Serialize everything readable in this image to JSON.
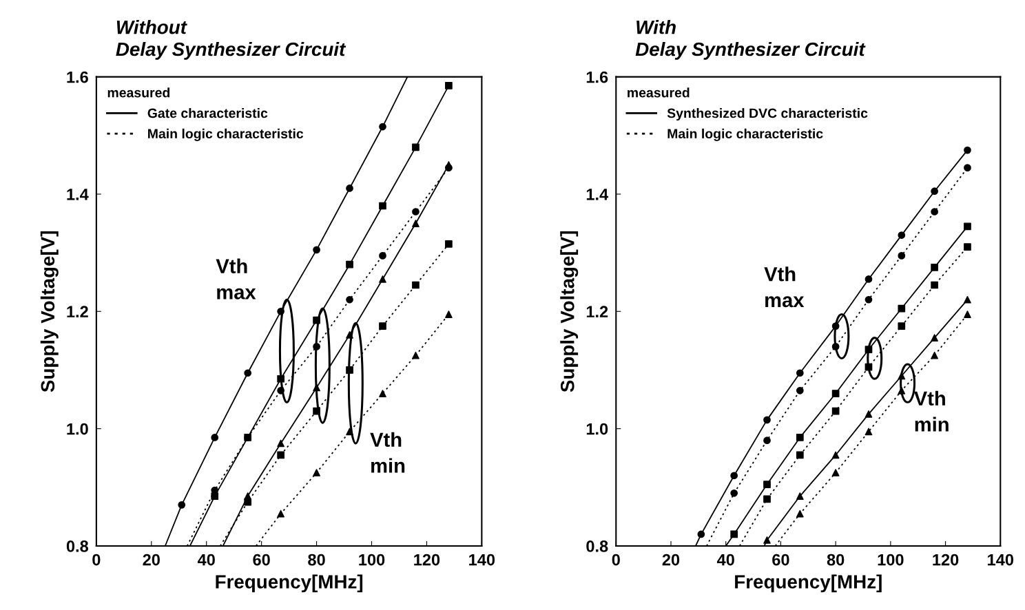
{
  "chart_data": [
    {
      "type": "line",
      "title": "Without\nDelay Synthesizer Circuit",
      "xlabel": "Frequency[MHz]",
      "ylabel": "Supply Voltage[V]",
      "xlim": [
        0,
        140
      ],
      "ylim": [
        0.8,
        1.6
      ],
      "xticks": [
        0,
        20,
        40,
        60,
        80,
        100,
        120,
        140
      ],
      "yticks": [
        {
          "value": 0.8,
          "label": "0.8"
        },
        {
          "value": 1.0,
          "label": "1.0"
        },
        {
          "value": 1.2,
          "label": "1.2"
        },
        {
          "value": 1.4,
          "label": "1.4"
        },
        {
          "value": 1.6,
          "label": "1.6"
        }
      ],
      "legend": "top left",
      "legend_title": "measured",
      "annotations": [
        "Vth\nmax",
        "Vth\nmin"
      ],
      "series": [
        {
          "type": "line",
          "name": "Gate characteristic",
          "color": "#000000",
          "line_style": "solid",
          "x": [
            25,
            31,
            43,
            55,
            67,
            80,
            92,
            104,
            113
          ],
          "values": [
            0.8,
            0.87,
            0.985,
            1.095,
            1.2,
            1.305,
            1.41,
            1.515,
            1.6
          ]
        },
        {
          "type": "line",
          "color": "#000000",
          "line_style": "solid",
          "x": [
            34,
            43,
            55,
            67,
            80,
            92,
            104,
            116,
            128
          ],
          "values": [
            0.8,
            0.885,
            0.985,
            1.085,
            1.185,
            1.28,
            1.38,
            1.48,
            1.585
          ]
        },
        {
          "color": "#000000",
          "line_style": "solid",
          "x": [
            46,
            55,
            67,
            80,
            92,
            104,
            116,
            128
          ],
          "values": [
            0.8,
            0.885,
            0.975,
            1.07,
            1.16,
            1.255,
            1.35,
            1.45
          ]
        },
        {
          "type": "line",
          "name": "Main logic characteristic",
          "color": "#000000",
          "line_style": "dotted",
          "x": [
            33,
            43,
            55,
            67,
            80,
            92,
            104,
            116,
            128
          ],
          "values": [
            0.8,
            0.895,
            0.985,
            1.065,
            1.14,
            1.22,
            1.295,
            1.37,
            1.445
          ]
        },
        {
          "color": "#000000",
          "line_style": "dotted",
          "x": [
            45,
            55,
            67,
            80,
            92,
            104,
            116,
            128
          ],
          "values": [
            0.8,
            0.875,
            0.955,
            1.03,
            1.1,
            1.175,
            1.245,
            1.315
          ]
        },
        {
          "type": "line",
          "color": "#000000",
          "line_style": "dotted",
          "x": [
            58,
            67,
            80,
            92,
            104,
            116,
            128
          ],
          "values": [
            0.8,
            0.855,
            0.925,
            0.995,
            1.06,
            1.125,
            1.195
          ]
        },
        {
          "type": "scatter",
          "marker": "circle",
          "color": "#000000",
          "x": [
            31,
            43,
            55,
            67,
            80,
            92,
            104
          ],
          "values": [
            0.87,
            0.985,
            1.095,
            1.2,
            1.305,
            1.41,
            1.515
          ]
        },
        {
          "type": "scatter",
          "marker": "square",
          "color": "#000000",
          "x": [
            43,
            55,
            67,
            80,
            92,
            104,
            116,
            128
          ],
          "values": [
            0.885,
            0.985,
            1.085,
            1.185,
            1.28,
            1.38,
            1.48,
            1.585
          ]
        },
        {
          "type": "scatter",
          "marker": "triangle",
          "color": "#000000",
          "x": [
            55,
            67,
            80,
            92,
            104,
            116,
            128
          ],
          "values": [
            0.885,
            0.975,
            1.07,
            1.16,
            1.255,
            1.35,
            1.45
          ]
        },
        {
          "type": "scatter",
          "marker": "circle",
          "color": "#000000",
          "x": [
            43,
            55,
            67,
            80,
            92,
            104,
            116,
            128
          ],
          "values": [
            0.895,
            0.985,
            1.065,
            1.14,
            1.22,
            1.295,
            1.37,
            1.445
          ]
        },
        {
          "type": "scatter",
          "marker": "square",
          "color": "#000000",
          "x": [
            55,
            67,
            80,
            92,
            104,
            116,
            128
          ],
          "values": [
            0.875,
            0.955,
            1.03,
            1.1,
            1.175,
            1.245,
            1.315
          ]
        },
        {
          "type": "scatter",
          "marker": "triangle",
          "color": "#000000",
          "x": [
            67,
            80,
            92,
            104,
            116,
            128
          ],
          "values": [
            0.855,
            0.925,
            0.995,
            1.06,
            1.125,
            1.195
          ]
        }
      ]
    },
    {
      "type": "line",
      "title": "With\nDelay Synthesizer Circuit",
      "xlabel": "Frequency[MHz]",
      "ylabel": "Supply Voltage[V]",
      "xlim": [
        0,
        140
      ],
      "ylim": [
        0.8,
        1.6
      ],
      "xticks": [
        0,
        20,
        40,
        60,
        80,
        100,
        120,
        140
      ],
      "yticks": [
        {
          "value": 0.8,
          "label": "0.8"
        },
        {
          "value": 1.0,
          "label": "1.0"
        },
        {
          "value": 1.2,
          "label": "1.2"
        },
        {
          "value": 1.4,
          "label": "1.4"
        },
        {
          "value": 1.6,
          "label": "1.6"
        }
      ],
      "legend": "top left",
      "legend_title": "measured",
      "annotations": [
        "Vth\nmax",
        "Vth\nmin"
      ],
      "series": [
        {
          "type": "line",
          "name": "Synthesized DVC characteristic",
          "color": "#000000",
          "line_style": "solid",
          "x": [
            29,
            31,
            43,
            55,
            67,
            80,
            92,
            104,
            116,
            128
          ],
          "values": [
            0.8,
            0.82,
            0.92,
            1.015,
            1.095,
            1.175,
            1.255,
            1.33,
            1.405,
            1.475
          ]
        },
        {
          "type": "line",
          "color": "#000000",
          "line_style": "solid",
          "x": [
            40,
            43,
            55,
            67,
            80,
            92,
            104,
            116,
            128
          ],
          "values": [
            0.8,
            0.82,
            0.905,
            0.985,
            1.06,
            1.135,
            1.205,
            1.275,
            1.345
          ]
        },
        {
          "type": "line",
          "color": "#000000",
          "line_style": "solid",
          "x": [
            54,
            55,
            67,
            80,
            92,
            104,
            116,
            128
          ],
          "values": [
            0.8,
            0.81,
            0.885,
            0.955,
            1.025,
            1.09,
            1.155,
            1.22
          ]
        },
        {
          "type": "line",
          "name": "Main logic characteristic",
          "color": "#000000",
          "line_style": "dotted",
          "x": [
            33,
            43,
            55,
            67,
            80,
            92,
            104,
            116,
            128
          ],
          "values": [
            0.8,
            0.89,
            0.98,
            1.065,
            1.14,
            1.22,
            1.295,
            1.37,
            1.445
          ]
        },
        {
          "type": "line",
          "color": "#000000",
          "line_style": "dotted",
          "x": [
            45,
            55,
            67,
            80,
            92,
            104,
            116,
            128
          ],
          "values": [
            0.8,
            0.88,
            0.955,
            1.03,
            1.105,
            1.175,
            1.245,
            1.31
          ]
        },
        {
          "type": "line",
          "color": "#000000",
          "line_style": "dotted",
          "x": [
            58,
            67,
            80,
            92,
            104,
            116,
            128
          ],
          "values": [
            0.8,
            0.855,
            0.925,
            0.995,
            1.065,
            1.125,
            1.195
          ]
        },
        {
          "type": "scatter",
          "marker": "circle",
          "color": "#000000",
          "x": [
            31,
            43,
            55,
            67,
            80,
            92,
            104,
            116,
            128
          ],
          "values": [
            0.82,
            0.92,
            1.015,
            1.095,
            1.175,
            1.255,
            1.33,
            1.405,
            1.475
          ]
        },
        {
          "type": "scatter",
          "marker": "square",
          "color": "#000000",
          "x": [
            43,
            55,
            67,
            80,
            92,
            104,
            116,
            128
          ],
          "values": [
            0.82,
            0.905,
            0.985,
            1.06,
            1.135,
            1.205,
            1.275,
            1.345
          ]
        },
        {
          "type": "scatter",
          "marker": "triangle",
          "color": "#000000",
          "x": [
            55,
            67,
            80,
            92,
            104,
            116,
            128
          ],
          "values": [
            0.81,
            0.885,
            0.955,
            1.025,
            1.09,
            1.155,
            1.22
          ]
        },
        {
          "type": "scatter",
          "marker": "circle",
          "color": "#000000",
          "x": [
            43,
            55,
            67,
            80,
            92,
            104,
            116,
            128
          ],
          "values": [
            0.89,
            0.98,
            1.065,
            1.14,
            1.22,
            1.295,
            1.37,
            1.445
          ]
        },
        {
          "type": "scatter",
          "marker": "square",
          "color": "#000000",
          "x": [
            55,
            67,
            80,
            92,
            104,
            116,
            128
          ],
          "values": [
            0.88,
            0.955,
            1.03,
            1.105,
            1.175,
            1.245,
            1.31
          ]
        },
        {
          "type": "scatter",
          "marker": "triangle",
          "color": "#000000",
          "x": [
            67,
            80,
            92,
            104,
            116,
            128
          ],
          "values": [
            0.855,
            0.925,
            0.995,
            1.065,
            1.125,
            1.195
          ]
        }
      ]
    }
  ]
}
